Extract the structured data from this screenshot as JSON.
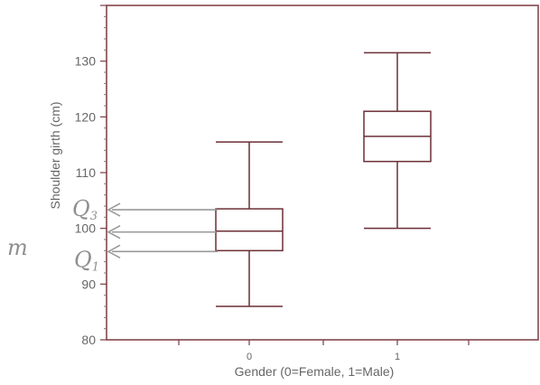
{
  "chart_data": {
    "type": "box",
    "xlabel": "Gender (0=Female, 1=Male)",
    "ylabel": "Shoulder girth (cm)",
    "ylim": [
      80,
      140
    ],
    "yticks": [
      80,
      90,
      100,
      110,
      120,
      130
    ],
    "categories": [
      "0",
      "1"
    ],
    "boxes": [
      {
        "category": "0",
        "min": 86,
        "q1": 96,
        "median": 99.5,
        "q3": 103.5,
        "max": 115.5
      },
      {
        "category": "1",
        "min": 100,
        "q1": 112,
        "median": 116.5,
        "q3": 121,
        "max": 131.5
      }
    ],
    "grid": false,
    "annotations": {
      "q3": {
        "text": "Q",
        "sub": "3",
        "value": 103.5
      },
      "median": {
        "text": "m",
        "value": 99.5
      },
      "q1": {
        "text": "Q",
        "sub": "1",
        "value": 96
      }
    }
  }
}
